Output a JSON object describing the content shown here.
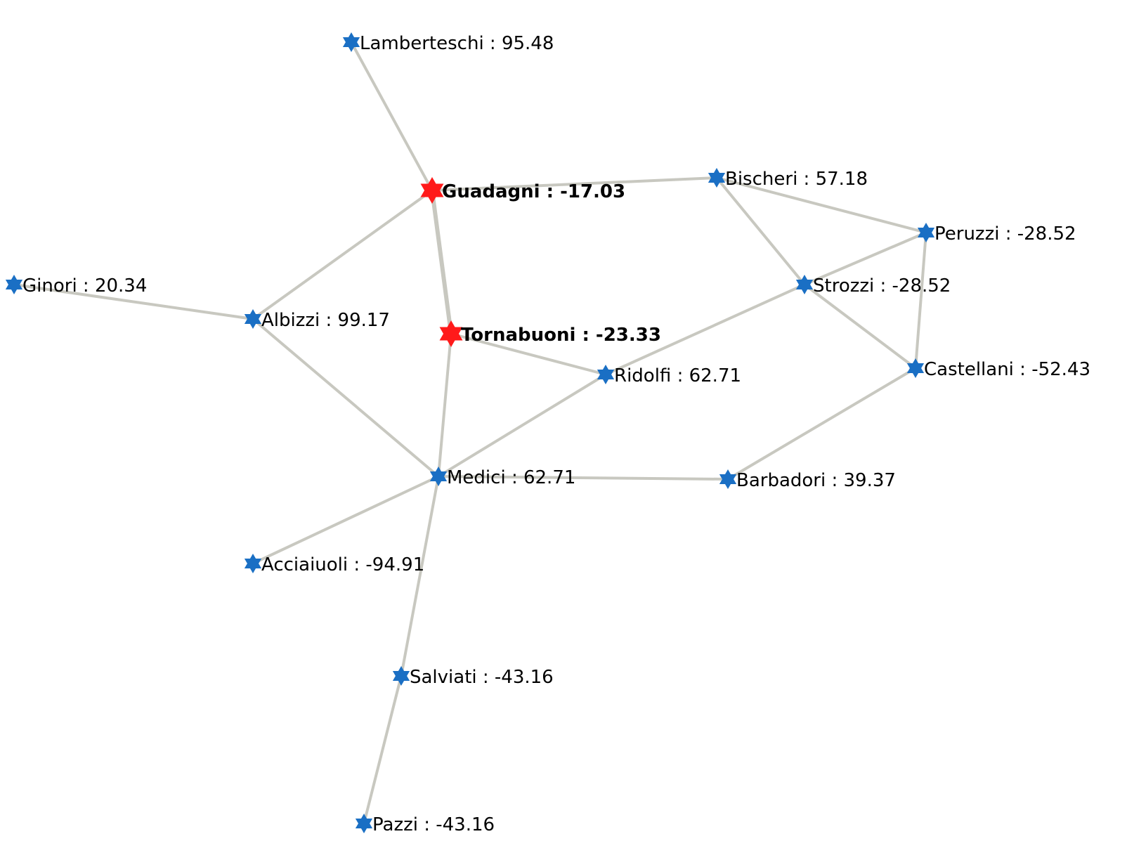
{
  "colors": {
    "node_default": "#1a6fc4",
    "node_selected": "#ff1a1a",
    "edge_default": "#c8c8c0",
    "edge_highlight": "#8888ff",
    "label": "#000000"
  },
  "node_shape": "star-of-david-icon",
  "label_separator": " :  ",
  "nodes": [
    {
      "id": "lamberteschi",
      "name": "Lamberteschi",
      "value": "95.48",
      "selected": false
    },
    {
      "id": "guadagni",
      "name": "Guadagni",
      "value": "-17.03",
      "selected": true
    },
    {
      "id": "bischeri",
      "name": "Bischeri",
      "value": "57.18",
      "selected": false
    },
    {
      "id": "peruzzi",
      "name": "Peruzzi",
      "value": "-28.52",
      "selected": false
    },
    {
      "id": "strozzi",
      "name": "Strozzi",
      "value": "-28.52",
      "selected": false
    },
    {
      "id": "ginori",
      "name": "Ginori",
      "value": "20.34",
      "selected": false
    },
    {
      "id": "albizzi",
      "name": "Albizzi",
      "value": "99.17",
      "selected": false
    },
    {
      "id": "tornabuoni",
      "name": "Tornabuoni",
      "value": "-23.33",
      "selected": true
    },
    {
      "id": "ridolfi",
      "name": "Ridolfi",
      "value": "62.71",
      "selected": false
    },
    {
      "id": "castellani",
      "name": "Castellani",
      "value": "-52.43",
      "selected": false
    },
    {
      "id": "medici",
      "name": "Medici",
      "value": "62.71",
      "selected": false
    },
    {
      "id": "barbadori",
      "name": "Barbadori",
      "value": "39.37",
      "selected": false
    },
    {
      "id": "acciaiuoli",
      "name": "Acciaiuoli",
      "value": "-94.91",
      "selected": false
    },
    {
      "id": "salviati",
      "name": "Salviati",
      "value": "-43.16",
      "selected": false
    },
    {
      "id": "pazzi",
      "name": "Pazzi",
      "value": "-43.16",
      "selected": false
    }
  ],
  "edges": [
    {
      "source": "lamberteschi",
      "target": "guadagni",
      "highlight": false
    },
    {
      "source": "guadagni",
      "target": "bischeri",
      "highlight": false
    },
    {
      "source": "guadagni",
      "target": "albizzi",
      "highlight": false
    },
    {
      "source": "guadagni",
      "target": "tornabuoni",
      "highlight": true
    },
    {
      "source": "bischeri",
      "target": "peruzzi",
      "highlight": false
    },
    {
      "source": "bischeri",
      "target": "strozzi",
      "highlight": false
    },
    {
      "source": "peruzzi",
      "target": "strozzi",
      "highlight": false
    },
    {
      "source": "peruzzi",
      "target": "castellani",
      "highlight": false
    },
    {
      "source": "strozzi",
      "target": "castellani",
      "highlight": false
    },
    {
      "source": "strozzi",
      "target": "ridolfi",
      "highlight": false
    },
    {
      "source": "ginori",
      "target": "albizzi",
      "highlight": false
    },
    {
      "source": "albizzi",
      "target": "medici",
      "highlight": false
    },
    {
      "source": "tornabuoni",
      "target": "ridolfi",
      "highlight": false
    },
    {
      "source": "tornabuoni",
      "target": "medici",
      "highlight": false
    },
    {
      "source": "ridolfi",
      "target": "medici",
      "highlight": false
    },
    {
      "source": "castellani",
      "target": "barbadori",
      "highlight": false
    },
    {
      "source": "medici",
      "target": "barbadori",
      "highlight": false
    },
    {
      "source": "medici",
      "target": "acciaiuoli",
      "highlight": false
    },
    {
      "source": "medici",
      "target": "salviati",
      "highlight": false
    },
    {
      "source": "salviati",
      "target": "pazzi",
      "highlight": false
    }
  ]
}
